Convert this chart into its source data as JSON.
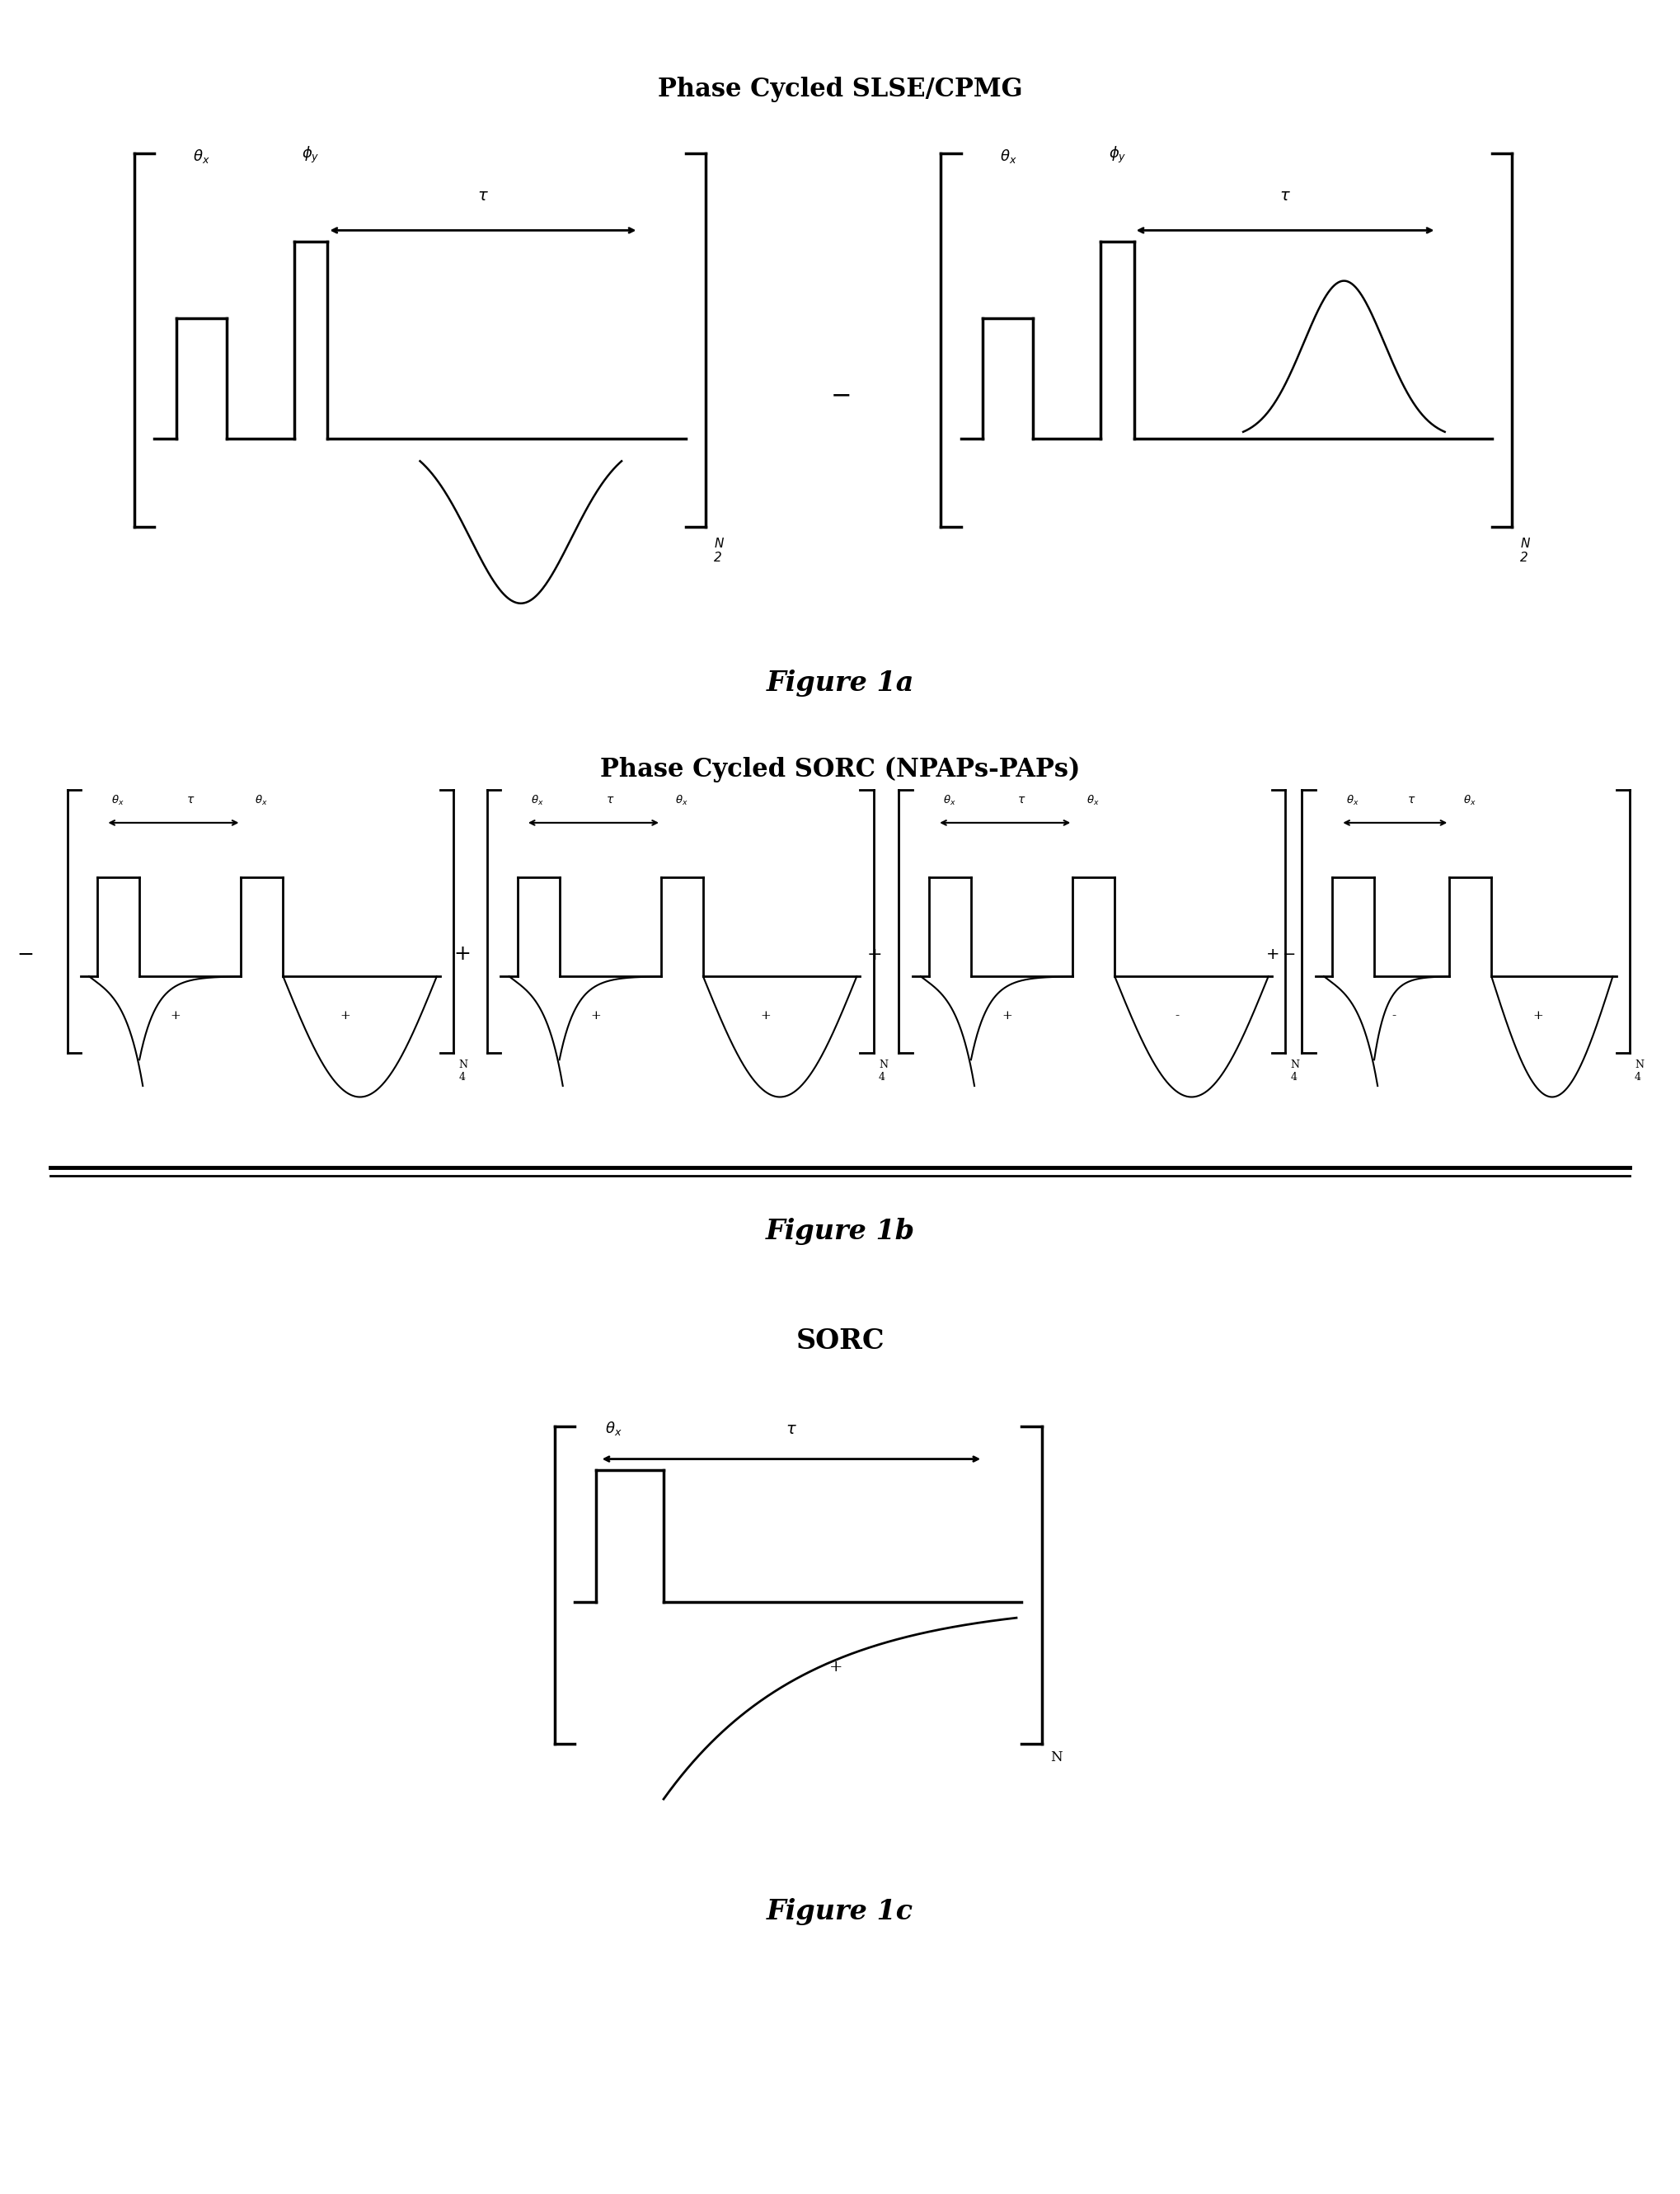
{
  "title_1a": "Phase Cycled SLSE/CPMG",
  "title_1b": "Phase Cycled SORC (NPAPs-PAPs)",
  "title_1c": "SORC",
  "fig1a_label": "Figure 1a",
  "fig1b_label": "Figure 1b",
  "fig1c_label": "Figure 1c",
  "bg_color": "#ffffff",
  "line_color": "#000000",
  "title_fontsize": 22,
  "label_fontsize": 14,
  "fig_label_fontsize": 24
}
